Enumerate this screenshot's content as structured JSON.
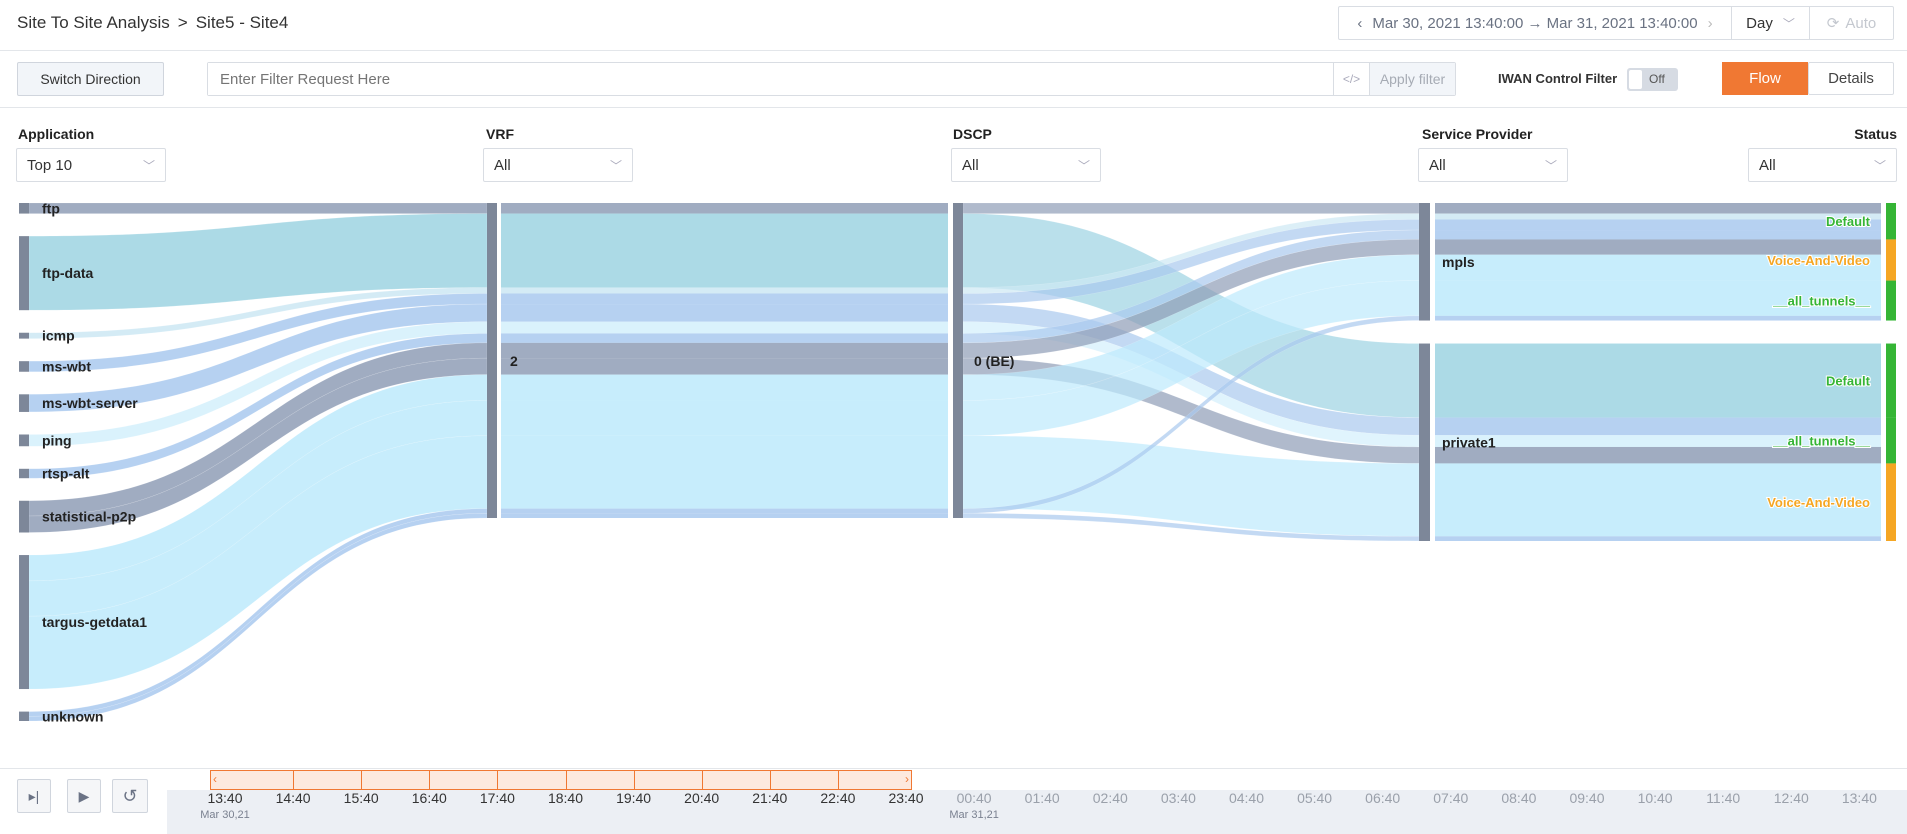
{
  "header": {
    "breadcrumb": [
      "Site To Site Analysis",
      "Site5 - Site4"
    ],
    "separator": ">",
    "date_range": "Mar 30, 2021 13:40:00 → Mar 31, 2021 13:40:00",
    "period": "Day",
    "auto": "Auto"
  },
  "toolbar": {
    "switch_direction": "Switch Direction",
    "filter_placeholder": "Enter Filter Request Here",
    "code_icon": "</>",
    "apply_filter": "Apply filter",
    "iwan_label": "IWAN Control Filter",
    "iwan_toggle": "Off",
    "iwan_on": false,
    "view_tabs": [
      "Flow",
      "Details"
    ],
    "active_tab": "Flow",
    "accent": "#f07833"
  },
  "columns": [
    {
      "label": "Application",
      "filter": "Top 10"
    },
    {
      "label": "VRF",
      "filter": "All"
    },
    {
      "label": "DSCP",
      "filter": "All"
    },
    {
      "label": "Service Provider",
      "filter": "All"
    },
    {
      "label": "Status",
      "filter": "All"
    }
  ],
  "chart_data": {
    "type": "sankey",
    "applications": [
      {
        "name": "ftp",
        "color": "#8f9db6"
      },
      {
        "name": "ftp-data",
        "color": "#9dd3e2"
      },
      {
        "name": "icmp",
        "color": "#cde8f3"
      },
      {
        "name": "ms-wbt",
        "color": "#a9c9ee"
      },
      {
        "name": "ms-wbt-server",
        "color": "#a9c9ee"
      },
      {
        "name": "ping",
        "color": "#d3f0fc"
      },
      {
        "name": "rtsp-alt",
        "color": "#a9c9ee"
      },
      {
        "name": "statistical-p2p",
        "color": "#8f9db6"
      },
      {
        "name": "targus-getdata1",
        "color": "#bdeafc"
      },
      {
        "name": "unknown",
        "color": "#a9c9ee"
      }
    ],
    "vrf": "2",
    "dscp": "0 (BE)",
    "providers": [
      "mpls",
      "private1"
    ],
    "statuses": [
      {
        "name": "Default",
        "color": "#35b535"
      },
      {
        "name": "Voice-And-Video",
        "color": "#f5a623"
      },
      {
        "name": "__all_tunnels__",
        "color": "#35b535"
      }
    ],
    "status_order": {
      "mpls": [
        "Default",
        "Voice-And-Video",
        "__all_tunnels__"
      ],
      "private1": [
        "Default",
        "__all_tunnels__",
        "Voice-And-Video"
      ]
    },
    "links": [
      [
        "ftp",
        "mpls",
        "Default",
        9
      ],
      [
        "icmp",
        "mpls",
        "Default",
        5
      ],
      [
        "ms-wbt",
        "mpls",
        "Default",
        9
      ],
      [
        "rtsp-alt",
        "mpls",
        "Default",
        8
      ],
      [
        "statistical-p2p",
        "mpls",
        "Voice-And-Video",
        13
      ],
      [
        "targus-getdata1",
        "mpls",
        "Voice-And-Video",
        22
      ],
      [
        "targus-getdata1",
        "mpls",
        "__all_tunnels__",
        30
      ],
      [
        "unknown",
        "mpls",
        "__all_tunnels__",
        4
      ],
      [
        "ftp-data",
        "private1",
        "Default",
        63
      ],
      [
        "ms-wbt-server",
        "private1",
        "__all_tunnels__",
        15
      ],
      [
        "ping",
        "private1",
        "__all_tunnels__",
        10
      ],
      [
        "statistical-p2p",
        "private1",
        "__all_tunnels__",
        14
      ],
      [
        "targus-getdata1",
        "private1",
        "Voice-And-Video",
        62
      ],
      [
        "unknown",
        "private1",
        "Voice-And-Video",
        4
      ]
    ]
  },
  "timeline": {
    "ticks": [
      "13:40",
      "14:40",
      "15:40",
      "16:40",
      "17:40",
      "18:40",
      "19:40",
      "20:40",
      "21:40",
      "22:40",
      "23:40",
      "00:40",
      "01:40",
      "02:40",
      "03:40",
      "04:40",
      "05:40",
      "06:40",
      "07:40",
      "08:40",
      "09:40",
      "10:40",
      "11:40",
      "12:40",
      "13:40"
    ],
    "dates": [
      "Mar 30,21",
      "Mar 31,21"
    ],
    "selected_range": [
      "13:40",
      "23:40"
    ]
  }
}
